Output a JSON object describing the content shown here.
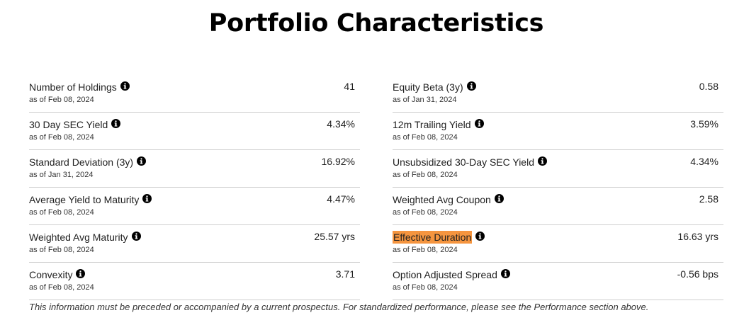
{
  "title": "Portfolio Characteristics",
  "left_rows": [
    {
      "label": "Number of Holdings",
      "as_of": "as of Feb 08, 2024",
      "value": "41"
    },
    {
      "label": "30 Day SEC Yield",
      "as_of": "as of Feb 08, 2024",
      "value": "4.34%"
    },
    {
      "label": "Standard Deviation (3y)",
      "as_of": "as of Jan 31, 2024",
      "value": "16.92%"
    },
    {
      "label": "Average Yield to Maturity",
      "as_of": "as of Feb 08, 2024",
      "value": "4.47%"
    },
    {
      "label": "Weighted Avg Maturity",
      "as_of": "as of Feb 08, 2024",
      "value": "25.57 yrs"
    },
    {
      "label": "Convexity",
      "as_of": "as of Feb 08, 2024",
      "value": "3.71"
    }
  ],
  "right_rows": [
    {
      "label": "Equity Beta (3y)",
      "as_of": "as of Jan 31, 2024",
      "value": "0.58"
    },
    {
      "label": "12m Trailing Yield",
      "as_of": "as of Feb 08, 2024",
      "value": "3.59%"
    },
    {
      "label": "Unsubsidized 30-Day SEC Yield",
      "as_of": "as of Feb 08, 2024",
      "value": "4.34%"
    },
    {
      "label": "Weighted Avg Coupon",
      "as_of": "as of Feb 08, 2024",
      "value": "2.58"
    },
    {
      "label": "Effective Duration",
      "as_of": "as of Feb 08, 2024",
      "value": "16.63 yrs",
      "highlighted": true
    },
    {
      "label": "Option Adjusted Spread",
      "as_of": "as of Feb 08, 2024",
      "value": "-0.56 bps"
    }
  ],
  "footnote": "This information must be preceded or accompanied by a current prospectus. For standardized performance, please see the Performance section above.",
  "colors": {
    "highlight": "#f5953f",
    "divider": "#cfcfcf",
    "info_icon": "#000000"
  },
  "icons": {
    "info": "info-icon"
  }
}
